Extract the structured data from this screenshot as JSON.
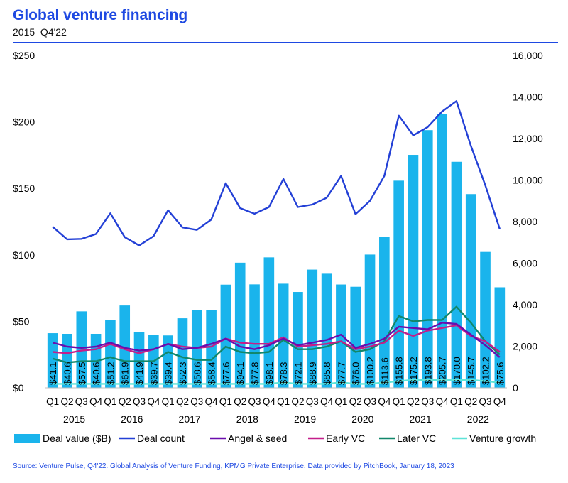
{
  "header": {
    "title": "Global venture financing",
    "subtitle": "2015–Q4'22"
  },
  "footer": {
    "source": "Source: Venture Pulse, Q4'22. Global Analysis of Venture Funding, KPMG Private Enterprise. Data provided by PitchBook, January 18, 2023"
  },
  "colors": {
    "deal_value": "#1ab4ec",
    "deal_count": "#2340d6",
    "angel_seed": "#6a0dad",
    "early_vc": "#c41e8a",
    "later_vc": "#12876b",
    "venture_growth": "#5ee3d8"
  },
  "chart_data": {
    "type": "bar",
    "categories": [
      "Q1",
      "Q2",
      "Q3",
      "Q4",
      "Q1",
      "Q2",
      "Q3",
      "Q4",
      "Q1",
      "Q2",
      "Q3",
      "Q4",
      "Q1",
      "Q2",
      "Q3",
      "Q4",
      "Q1",
      "Q2",
      "Q3",
      "Q4",
      "Q1",
      "Q2",
      "Q3",
      "Q4",
      "Q1",
      "Q2",
      "Q3",
      "Q4",
      "Q1",
      "Q2",
      "Q3",
      "Q4"
    ],
    "years": [
      "2015",
      "2016",
      "2017",
      "2018",
      "2019",
      "2020",
      "2021",
      "2022"
    ],
    "bar_labels": [
      "$41.1",
      "$40.6",
      "$57.5",
      "$40.6",
      "$51.2",
      "$61.9",
      "$41.9",
      "$39.7",
      "$39.4",
      "$52.3",
      "$58.6",
      "$58.4",
      "$77.6",
      "$94.1",
      "$77.8",
      "$98.1",
      "$78.3",
      "$72.1",
      "$88.9",
      "$85.8",
      "$77.7",
      "$76.0",
      "$100.2",
      "$113.6",
      "$155.8",
      "$175.2",
      "$193.8",
      "$205.7",
      "$170.0",
      "$145.7",
      "$102.2",
      "$75.6"
    ],
    "series": [
      {
        "name": "Deal value ($B)",
        "type": "bar",
        "axis": "left",
        "values": [
          41.1,
          40.6,
          57.5,
          40.6,
          51.2,
          61.9,
          41.9,
          39.7,
          39.4,
          52.3,
          58.6,
          58.4,
          77.6,
          94.1,
          77.8,
          98.1,
          78.3,
          72.1,
          88.9,
          85.8,
          77.7,
          76.0,
          100.2,
          113.6,
          155.8,
          175.2,
          193.8,
          205.7,
          170.0,
          145.7,
          102.2,
          75.6
        ]
      },
      {
        "name": "Deal count",
        "type": "line",
        "axis": "right",
        "values": [
          7750,
          7150,
          7170,
          7400,
          8400,
          7250,
          6850,
          7300,
          8550,
          7720,
          7600,
          8100,
          9850,
          8650,
          8380,
          8700,
          10050,
          8700,
          8820,
          9150,
          10200,
          8360,
          9000,
          10200,
          13100,
          12150,
          12550,
          13300,
          13800,
          11650,
          9750,
          7650
        ]
      },
      {
        "name": "Angel & seed",
        "type": "line",
        "axis": "left",
        "values": [
          34,
          31,
          30,
          31,
          34,
          30,
          28,
          29,
          33,
          29,
          30,
          33,
          37,
          31,
          29,
          32,
          37,
          32,
          34,
          36,
          40,
          30,
          33,
          37,
          46,
          45,
          44,
          49,
          48,
          40,
          32,
          23
        ]
      },
      {
        "name": "Early VC",
        "type": "line",
        "axis": "left",
        "values": [
          27,
          26,
          28,
          29,
          33,
          29,
          26,
          29,
          33,
          31,
          30,
          31,
          37,
          34,
          33,
          33,
          38,
          31,
          32,
          33,
          35,
          29,
          31,
          34,
          43,
          39,
          43,
          45,
          47,
          39,
          35,
          27
        ]
      },
      {
        "name": "Later VC",
        "type": "line",
        "axis": "left",
        "values": [
          22,
          19,
          20,
          20,
          23,
          20,
          20,
          20,
          27,
          23,
          21,
          21,
          31,
          27,
          26,
          27,
          36,
          29,
          29,
          31,
          35,
          27,
          29,
          35,
          54,
          50,
          51,
          51,
          61,
          49,
          35,
          25
        ]
      },
      {
        "name": "Venture growth",
        "type": "line",
        "axis": "left",
        "values": [
          3,
          3,
          3,
          3,
          3,
          3,
          3,
          3,
          3,
          3,
          3,
          3,
          3,
          3,
          3,
          3,
          4,
          3,
          3,
          3,
          4,
          3,
          3,
          4,
          5,
          6,
          6,
          6,
          6,
          6,
          5,
          4
        ]
      }
    ],
    "ylim_left": [
      0,
      250
    ],
    "yticks_left": [
      0,
      50,
      100,
      150,
      200,
      250
    ],
    "ytick_labels_left": [
      "$0",
      "$50",
      "$100",
      "$150",
      "$200",
      "$250"
    ],
    "ylim_right": [
      0,
      16000
    ],
    "yticks_right": [
      0,
      2000,
      4000,
      6000,
      8000,
      10000,
      12000,
      14000,
      16000
    ],
    "ytick_labels_right": [
      "0",
      "2,000",
      "4,000",
      "6,000",
      "8,000",
      "10,000",
      "12,000",
      "14,000",
      "16,000"
    ],
    "grid": false,
    "legend_position": "bottom"
  }
}
